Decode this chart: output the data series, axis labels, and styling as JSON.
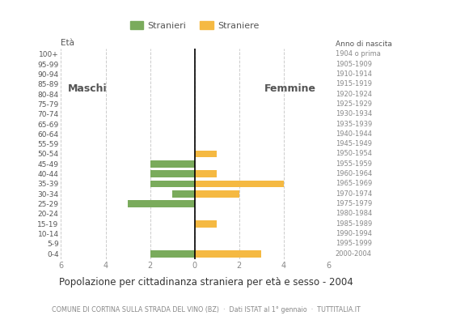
{
  "age_groups": [
    "0-4",
    "5-9",
    "10-14",
    "15-19",
    "20-24",
    "25-29",
    "30-34",
    "35-39",
    "40-44",
    "45-49",
    "50-54",
    "55-59",
    "60-64",
    "65-69",
    "70-74",
    "75-79",
    "80-84",
    "85-89",
    "90-94",
    "95-99",
    "100+"
  ],
  "birth_years": [
    "2000-2004",
    "1995-1999",
    "1990-1994",
    "1985-1989",
    "1980-1984",
    "1975-1979",
    "1970-1974",
    "1965-1969",
    "1960-1964",
    "1955-1959",
    "1950-1954",
    "1945-1949",
    "1940-1944",
    "1935-1939",
    "1930-1934",
    "1925-1929",
    "1920-1924",
    "1915-1919",
    "1910-1914",
    "1905-1909",
    "1904 o prima"
  ],
  "males": [
    2,
    0,
    0,
    0,
    0,
    3,
    1,
    2,
    2,
    2,
    0,
    0,
    0,
    0,
    0,
    0,
    0,
    0,
    0,
    0,
    0
  ],
  "females": [
    3,
    0,
    0,
    1,
    0,
    0,
    2,
    4,
    1,
    0,
    1,
    0,
    0,
    0,
    0,
    0,
    0,
    0,
    0,
    0,
    0
  ],
  "male_color": "#7aab5c",
  "female_color": "#f5b942",
  "xlim": 6,
  "title": "Popolazione per cittadinanza straniera per età e sesso - 2004",
  "subtitle": "COMUNE DI CORTINA SULLA STRADA DEL VINO (BZ)  ·  Dati ISTAT al 1° gennaio  ·  TUTTITALIA.IT",
  "legend_male": "Stranieri",
  "legend_female": "Straniere",
  "label_eta": "Età",
  "label_anno": "Anno di nascita",
  "label_maschi": "Maschi",
  "label_femmine": "Femmine",
  "bg_color": "#ffffff",
  "grid_color": "#cccccc",
  "text_color": "#555555",
  "axis_label_color": "#888888"
}
